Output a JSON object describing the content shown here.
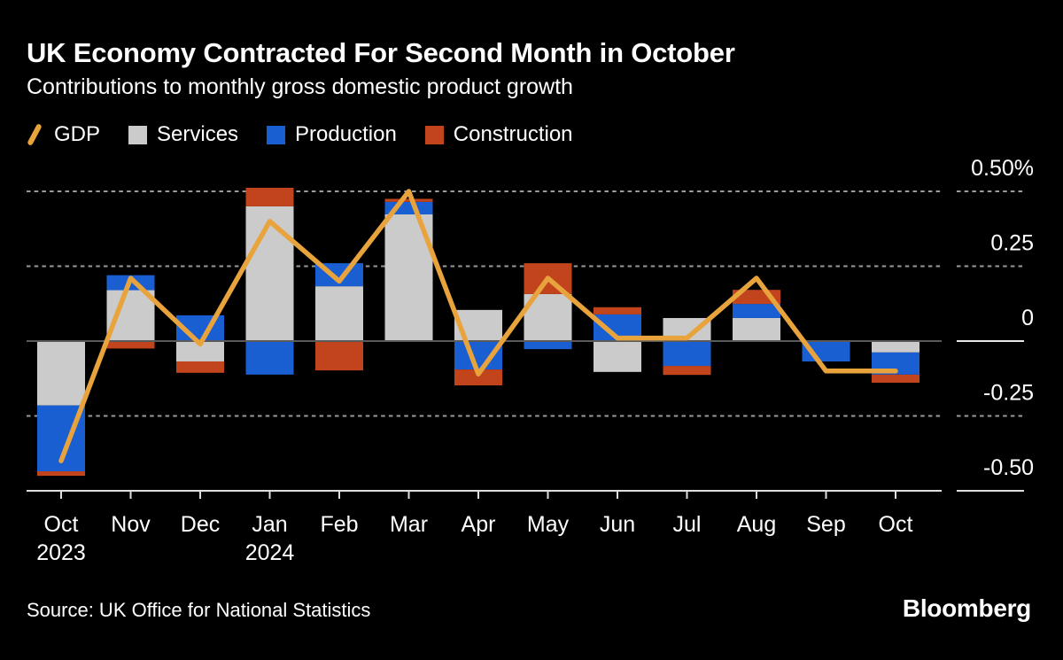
{
  "header": {
    "title": "UK Economy Contracted For Second Month in October",
    "subtitle": "Contributions to monthly gross domestic product growth"
  },
  "legend": [
    {
      "label": "GDP",
      "swatch": "line",
      "color": "#E8A33C"
    },
    {
      "label": "Services",
      "swatch": "square",
      "color": "#CBCBCB"
    },
    {
      "label": "Production",
      "swatch": "square",
      "color": "#1A5FD2"
    },
    {
      "label": "Construction",
      "swatch": "square",
      "color": "#C2441C"
    }
  ],
  "footer": {
    "source": "Source: UK Office for National Statistics",
    "brand": "Bloomberg"
  },
  "chart_data": {
    "type": "bar",
    "subtype": "stacked-bar-with-line-overlay",
    "unit": "%",
    "title": "UK Economy Contracted For Second Month in October",
    "subtitle": "Contributions to monthly gross domestic product growth",
    "categories": [
      "Oct",
      "Nov",
      "Dec",
      "Jan",
      "Feb",
      "Mar",
      "Apr",
      "May",
      "Jun",
      "Jul",
      "Aug",
      "Sep",
      "Oct"
    ],
    "category_years": [
      {
        "index": 0,
        "label": "2023"
      },
      {
        "index": 3,
        "label": "2024"
      }
    ],
    "series": [
      {
        "name": "Services",
        "color": "#CBCBCB",
        "values": [
          -0.215,
          0.17,
          -0.068,
          0.45,
          0.183,
          0.423,
          0.104,
          0.157,
          -0.103,
          0.077,
          0.077,
          0.0,
          -0.038
        ]
      },
      {
        "name": "Production",
        "color": "#1A5FD2",
        "values": [
          -0.22,
          0.05,
          0.086,
          -0.112,
          0.077,
          0.042,
          -0.095,
          -0.027,
          0.089,
          -0.083,
          0.047,
          -0.068,
          -0.074
        ]
      },
      {
        "name": "Construction",
        "color": "#C2441C",
        "values": [
          -0.015,
          -0.025,
          -0.038,
          0.062,
          -0.098,
          0.01,
          -0.053,
          0.103,
          0.024,
          -0.03,
          0.047,
          0.0,
          -0.027
        ]
      }
    ],
    "line_series": {
      "name": "GDP",
      "color": "#E8A33C",
      "values": [
        -0.4,
        0.21,
        -0.01,
        0.4,
        0.2,
        0.5,
        -0.11,
        0.21,
        0.01,
        0.01,
        0.21,
        -0.1,
        -0.1
      ]
    },
    "y_ticks": [
      {
        "label": "0.50%",
        "value": 0.5,
        "style": "dashed"
      },
      {
        "label": "0.25",
        "value": 0.25,
        "style": "dashed"
      },
      {
        "label": "0",
        "value": 0,
        "style": "zero"
      },
      {
        "label": "-0.25",
        "value": -0.25,
        "style": "dashed"
      },
      {
        "label": "-0.50",
        "value": -0.5,
        "style": "axis"
      }
    ],
    "ylim": [
      -0.5,
      0.55
    ],
    "grid": "horizontal-dashed",
    "legend_position": "top",
    "colors": {
      "background": "#000000",
      "text": "#FFFFFF",
      "grid": "#9A9A9A",
      "zero_line": "#5A5A5A",
      "axis": "#DEDEDE",
      "axis_bright": "#E8E8E8"
    }
  }
}
